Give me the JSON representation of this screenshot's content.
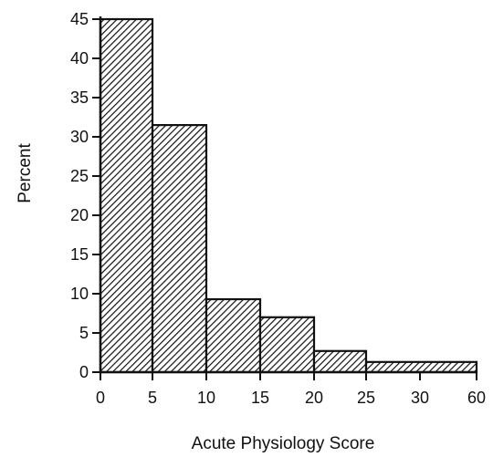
{
  "chart_data": {
    "type": "bar",
    "title": "",
    "xlabel": "Acute Physiology Score",
    "ylabel": "Percent",
    "ylim": [
      0,
      45
    ],
    "yticks": [
      0,
      5,
      10,
      15,
      20,
      25,
      30,
      35,
      40,
      45
    ],
    "xtick_labels": [
      "0",
      "5",
      "10",
      "15",
      "20",
      "25",
      "30",
      "60"
    ],
    "bins": [
      {
        "from": "0",
        "to": "5",
        "value": 45
      },
      {
        "from": "5",
        "to": "10",
        "value": 31.5
      },
      {
        "from": "10",
        "to": "15",
        "value": 9.3
      },
      {
        "from": "15",
        "to": "20",
        "value": 7
      },
      {
        "from": "20",
        "to": "25",
        "value": 2.7
      },
      {
        "from": "25",
        "to": "60",
        "value": 1.3
      }
    ],
    "bar_pattern": "diagonal-hatch",
    "bar_color": "#111111",
    "grid": false,
    "legend": "none"
  }
}
